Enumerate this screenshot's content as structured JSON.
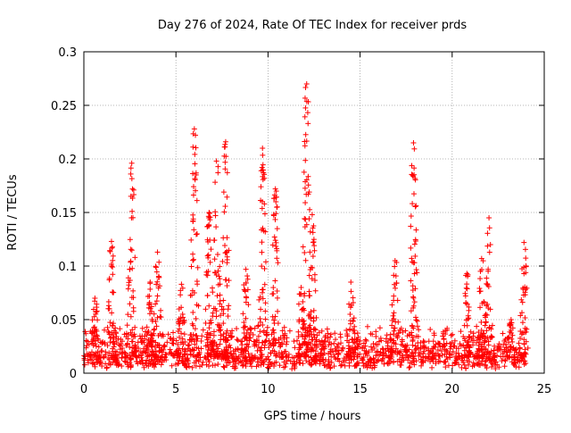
{
  "chart_data": {
    "type": "scatter",
    "title": "Day 276 of 2024, Rate Of TEC Index for receiver prds",
    "xlabel": "GPS time / hours",
    "ylabel": "ROTI / TECUs",
    "xlim": [
      0,
      25
    ],
    "ylim": [
      0,
      0.3
    ],
    "x_ticks": [
      "0",
      "5",
      "10",
      "15",
      "20",
      "25"
    ],
    "y_ticks": [
      "0",
      "0.05",
      "0.1",
      "0.15",
      "0.2",
      "0.25",
      "0.3"
    ],
    "grid": true,
    "marker": "plus",
    "color": "#ff0000",
    "peaks": [
      {
        "x": 0.6,
        "y": 0.07
      },
      {
        "x": 1.5,
        "y": 0.123
      },
      {
        "x": 2.6,
        "y": 0.196
      },
      {
        "x": 3.6,
        "y": 0.085
      },
      {
        "x": 4.0,
        "y": 0.113
      },
      {
        "x": 5.3,
        "y": 0.083
      },
      {
        "x": 6.0,
        "y": 0.228
      },
      {
        "x": 6.8,
        "y": 0.15
      },
      {
        "x": 7.2,
        "y": 0.198
      },
      {
        "x": 7.7,
        "y": 0.216
      },
      {
        "x": 8.8,
        "y": 0.097
      },
      {
        "x": 9.7,
        "y": 0.21
      },
      {
        "x": 10.4,
        "y": 0.172
      },
      {
        "x": 11.8,
        "y": 0.08
      },
      {
        "x": 12.1,
        "y": 0.27
      },
      {
        "x": 12.4,
        "y": 0.148
      },
      {
        "x": 14.5,
        "y": 0.085
      },
      {
        "x": 16.9,
        "y": 0.105
      },
      {
        "x": 17.9,
        "y": 0.215
      },
      {
        "x": 20.8,
        "y": 0.093
      },
      {
        "x": 21.6,
        "y": 0.107
      },
      {
        "x": 22.0,
        "y": 0.145
      },
      {
        "x": 23.2,
        "y": 0.05
      },
      {
        "x": 23.9,
        "y": 0.122
      }
    ]
  }
}
